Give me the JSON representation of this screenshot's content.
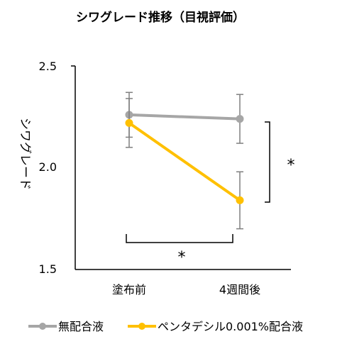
{
  "chart_data": {
    "type": "line",
    "title": "シワグレード推移（目視評価）",
    "ylabel": "シワグレード",
    "xlabel": "",
    "categories": [
      "塗布前",
      "4週間後"
    ],
    "ylim": [
      1.5,
      2.5
    ],
    "yticks": [
      "1.5",
      "2.0",
      "2.5"
    ],
    "grid": false,
    "legend_position": "bottom",
    "series": [
      {
        "name": "無配合液",
        "color": "#a6a6a6",
        "values": [
          2.26,
          2.24
        ],
        "error": [
          0.11,
          0.12
        ]
      },
      {
        "name": "ペンタデシル0.001%配合液",
        "color": "#ffc000",
        "values": [
          2.22,
          1.84
        ],
        "error": [
          0.12,
          0.14
        ]
      }
    ],
    "annotations": [
      {
        "text": "*",
        "type": "bracket",
        "between": "series"
      },
      {
        "text": "*",
        "type": "bracket",
        "between": "timepoints"
      }
    ]
  }
}
